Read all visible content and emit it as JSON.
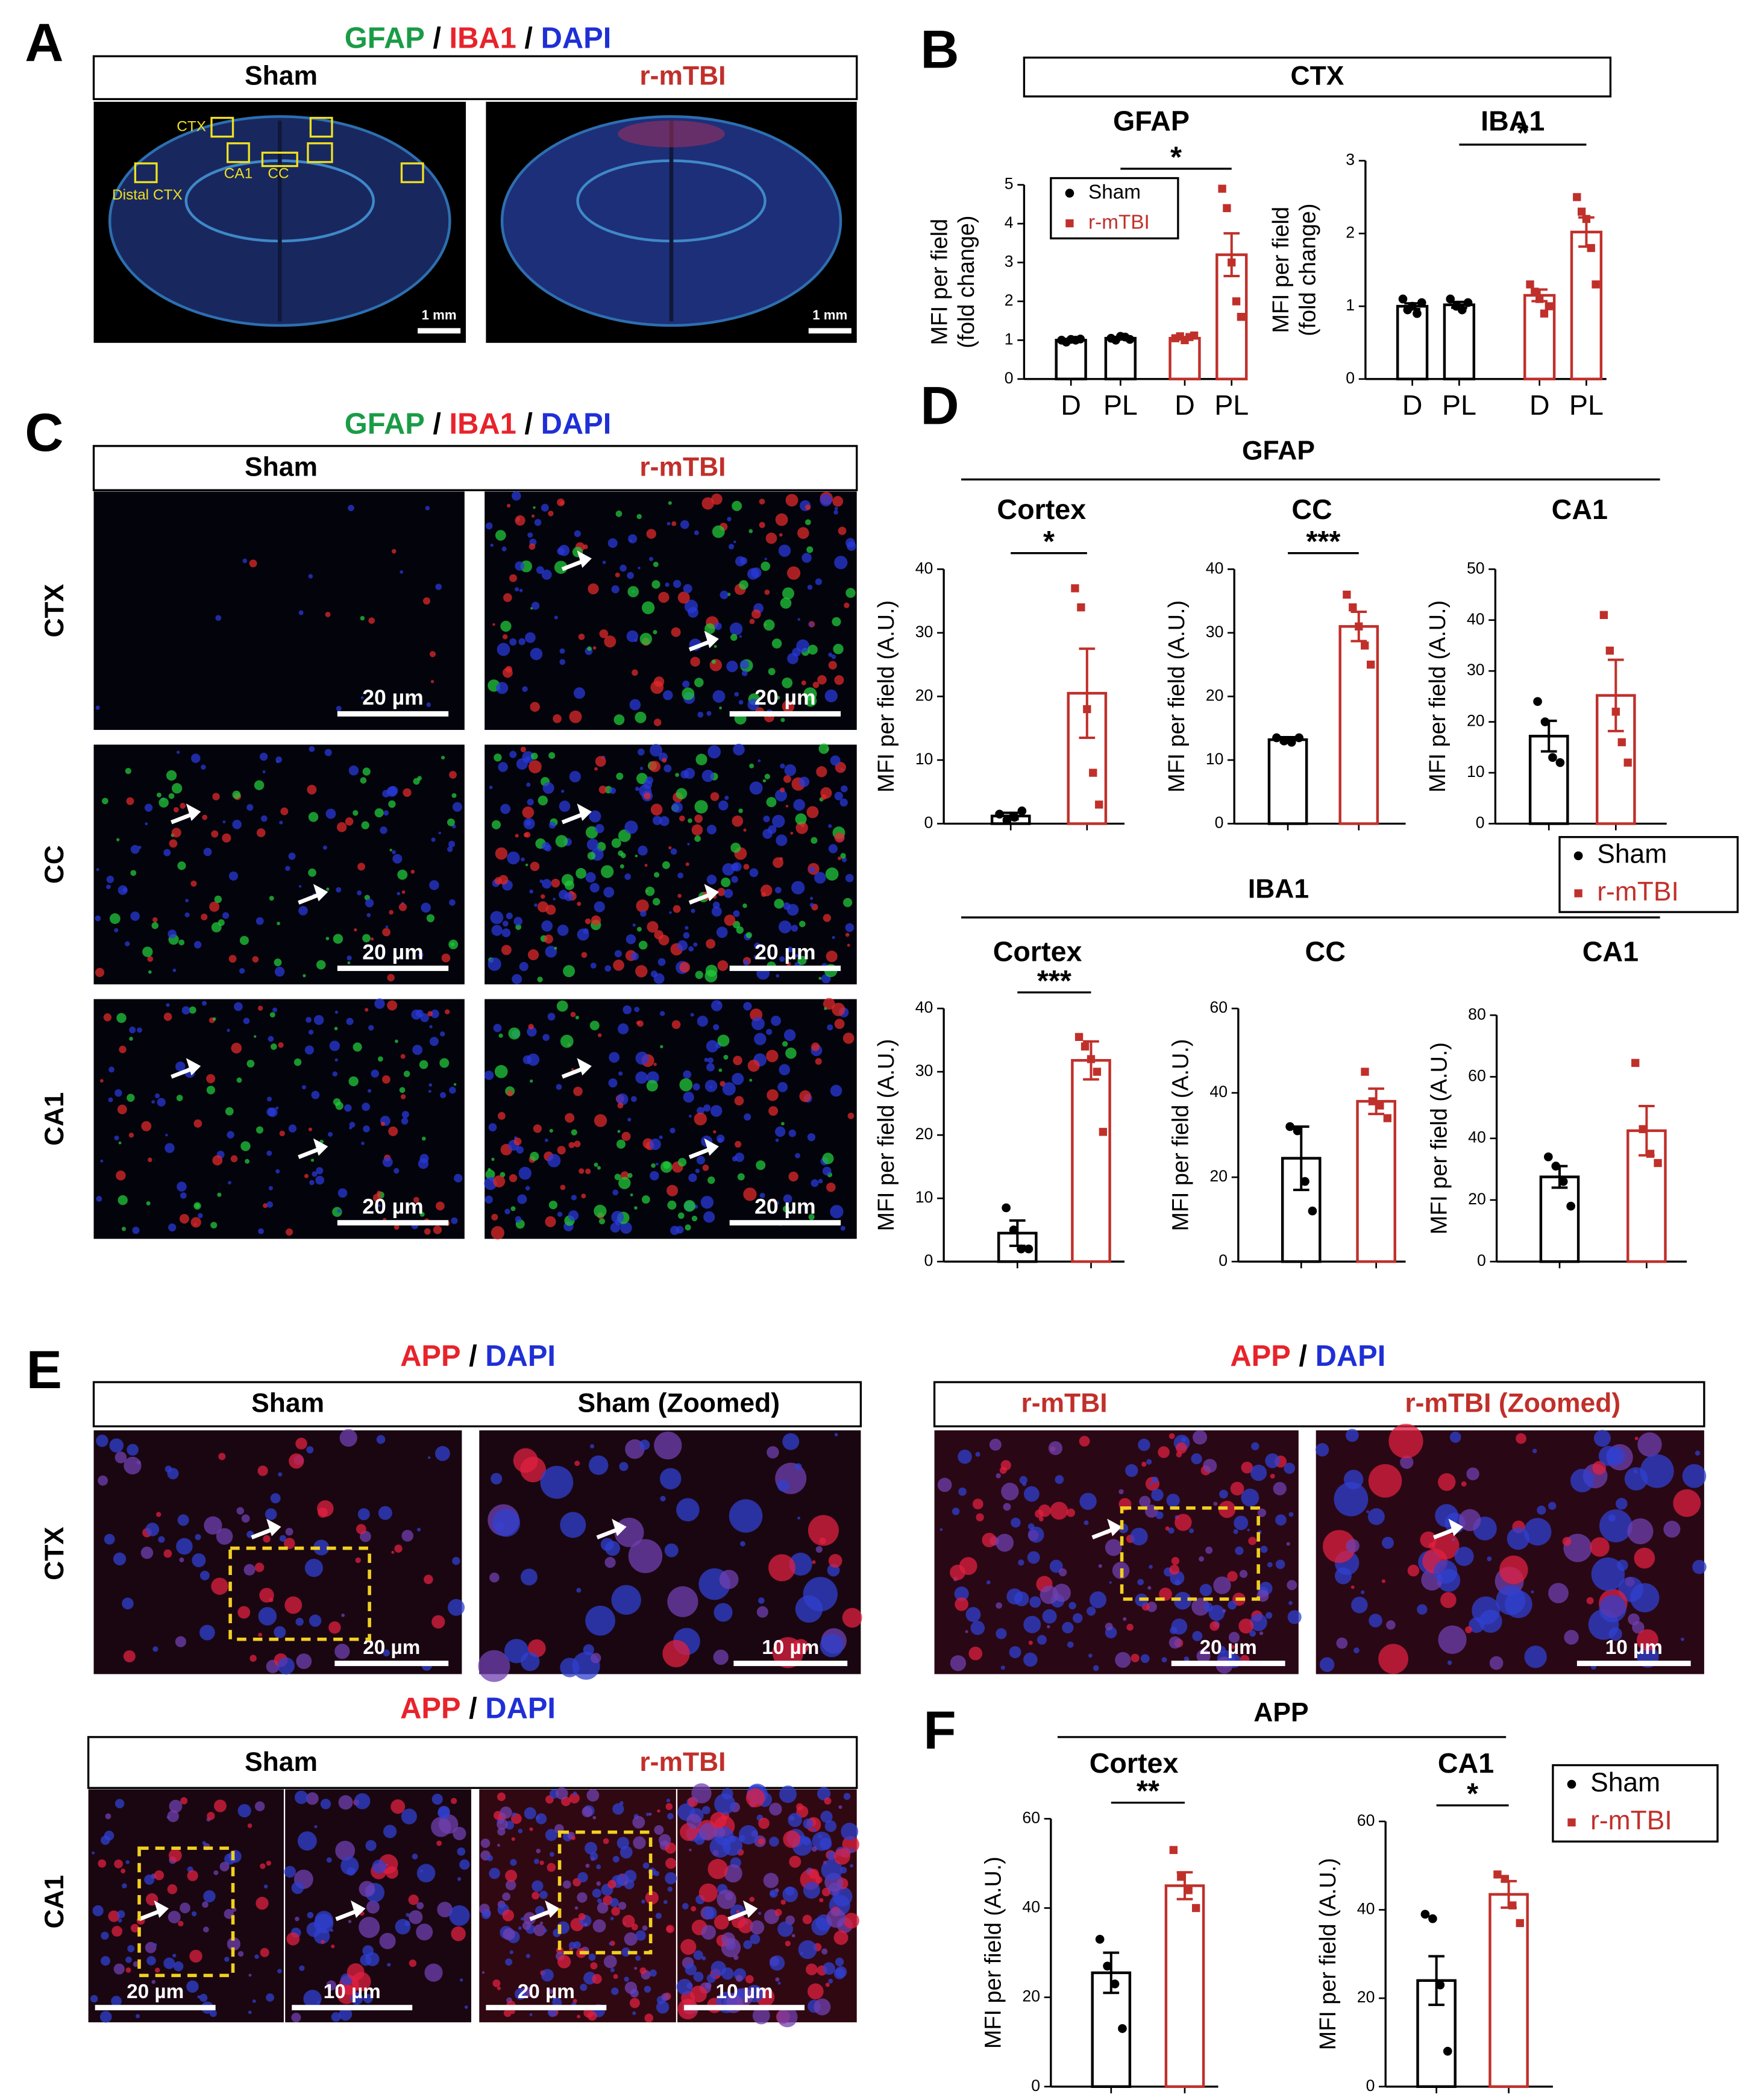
{
  "panel_labels": [
    "A",
    "B",
    "C",
    "D",
    "E",
    "F"
  ],
  "a": {
    "title": [
      {
        "text": "GFAP",
        "color": "#1a9c46"
      },
      {
        "text": " / ",
        "color": "#000000"
      },
      {
        "text": "IBA1",
        "color": "#e8232b"
      },
      {
        "text": " / ",
        "color": "#000000"
      },
      {
        "text": "DAPI",
        "color": "#1f2fd6"
      }
    ],
    "headers": [
      "Sham",
      "r-mTBI"
    ],
    "regions": [
      "CTX",
      "CA1",
      "CC",
      "Distal CTX"
    ],
    "scale_bars": [
      "1 mm",
      "1 mm"
    ]
  },
  "b": {
    "heading": "CTX"
  },
  "c": {
    "title": [
      {
        "text": "GFAP",
        "color": "#1a9c46"
      },
      {
        "text": " / ",
        "color": "#000000"
      },
      {
        "text": "IBA1",
        "color": "#e8232b"
      },
      {
        "text": " / ",
        "color": "#000000"
      },
      {
        "text": "DAPI",
        "color": "#1f2fd6"
      }
    ],
    "headers": [
      "Sham",
      "r-mTBI"
    ],
    "rows": [
      "CTX",
      "CC",
      "CA1"
    ],
    "scale_bars": [
      "20 µm",
      "20 µm",
      "20 µm",
      "20 µm",
      "20 µm",
      "20 µm"
    ]
  },
  "d": {
    "headings": [
      "GFAP",
      "IBA1"
    ]
  },
  "e": {
    "titles": [
      [
        {
          "text": "APP",
          "color": "#e8232b"
        },
        {
          "text": " / ",
          "color": "#000000"
        },
        {
          "text": "DAPI",
          "color": "#1f2fd6"
        }
      ],
      [
        {
          "text": "APP",
          "color": "#e8232b"
        },
        {
          "text": " / ",
          "color": "#000000"
        },
        {
          "text": "DAPI",
          "color": "#1f2fd6"
        }
      ],
      [
        {
          "text": "APP",
          "color": "#e8232b"
        },
        {
          "text": " / ",
          "color": "#000000"
        },
        {
          "text": "DAPI",
          "color": "#1f2fd6"
        }
      ]
    ],
    "headers_ctx": [
      "Sham",
      "Sham (Zoomed)",
      "r-mTBI",
      "r-mTBI (Zoomed)"
    ],
    "headers_ca1": [
      "Sham",
      "r-mTBI"
    ],
    "rows": [
      "CTX",
      "CA1"
    ],
    "scale_bars_ctx": [
      "20 µm",
      "10 µm",
      "20 µm",
      "10 µm"
    ],
    "scale_bars_ca1": [
      "20 µm",
      "10 µm",
      "20 µm",
      "10 µm"
    ]
  },
  "f": {
    "heading": "APP"
  },
  "chart_data": [
    {
      "type": "bar",
      "title": "GFAP",
      "ylabel": [
        "MFI per field",
        "(fold change)"
      ],
      "categories": [
        "D",
        "PL",
        "D",
        "PL"
      ],
      "series": [
        {
          "name": "Sham",
          "color": "#000000",
          "marker": "circle",
          "values": [
            1.0,
            1.05,
            null,
            null
          ],
          "errors": [
            0.03,
            0.03,
            null,
            null
          ],
          "points": [
            [
              1.0,
              0.95,
              1.02,
              1.0,
              1.03
            ],
            [
              1.05,
              1.0,
              1.1,
              1.08,
              1.02
            ],
            null,
            null
          ]
        },
        {
          "name": "r-mTBI",
          "color": "#c0302b",
          "marker": "square",
          "values": [
            null,
            null,
            1.05,
            3.2
          ],
          "errors": [
            null,
            null,
            0.03,
            0.55
          ],
          "points": [
            null,
            null,
            [
              1.05,
              1.1,
              1.0,
              1.08,
              1.12
            ],
            [
              4.9,
              4.4,
              3.0,
              2.0,
              1.6
            ]
          ]
        }
      ],
      "ylim": [
        0,
        5
      ],
      "yticks": [
        0,
        1,
        2,
        3,
        4,
        5
      ],
      "significance": "*",
      "legend": true
    },
    {
      "type": "bar",
      "title": "IBA1",
      "ylabel": [
        "MFI per field",
        "(fold change)"
      ],
      "categories": [
        "D",
        "PL",
        "D",
        "PL"
      ],
      "series": [
        {
          "name": "Sham",
          "color": "#000000",
          "marker": "circle",
          "values": [
            1.0,
            1.02,
            null,
            null
          ],
          "errors": [
            0.04,
            0.04,
            null,
            null
          ],
          "points": [
            [
              1.1,
              0.95,
              1.0,
              0.9,
              1.05
            ],
            [
              1.1,
              1.0,
              0.95,
              1.05
            ],
            null,
            null
          ]
        },
        {
          "name": "r-mTBI",
          "color": "#c0302b",
          "marker": "square",
          "values": [
            null,
            null,
            1.15,
            2.02
          ],
          "errors": [
            null,
            null,
            0.08,
            0.2
          ],
          "points": [
            null,
            null,
            [
              1.3,
              1.2,
              1.1,
              0.9,
              1.0
            ],
            [
              2.5,
              2.3,
              2.2,
              1.8,
              1.3
            ]
          ]
        }
      ],
      "ylim": [
        0,
        3
      ],
      "yticks": [
        0,
        1,
        2,
        3
      ],
      "significance": "*",
      "legend": false
    },
    {
      "type": "bar",
      "title": "Cortex",
      "ylabel": [
        "MFI per field (A.U.)"
      ],
      "categories": [
        null,
        null
      ],
      "series": [
        {
          "name": "Sham",
          "color": "#000000",
          "marker": "circle",
          "values": [
            1.2,
            null
          ],
          "errors": [
            0.5,
            null
          ],
          "points": [
            [
              1.5,
              0.5,
              1.0,
              2.0
            ],
            null
          ]
        },
        {
          "name": "r-mTBI",
          "color": "#c0302b",
          "marker": "square",
          "values": [
            null,
            20.5
          ],
          "errors": [
            null,
            7
          ],
          "points": [
            null,
            [
              37,
              34,
              18,
              8,
              3
            ]
          ]
        }
      ],
      "ylim": [
        0,
        40
      ],
      "yticks": [
        0,
        10,
        20,
        30,
        40
      ],
      "significance": "*",
      "legend": false
    },
    {
      "type": "bar",
      "title": "CC",
      "ylabel": [
        "MFI per field (A.U.)"
      ],
      "categories": [
        null,
        null
      ],
      "series": [
        {
          "name": "Sham",
          "color": "#000000",
          "marker": "circle",
          "values": [
            13.2,
            null
          ],
          "errors": [
            0.4,
            null
          ],
          "points": [
            [
              13.5,
              13,
              12.8,
              13.5
            ],
            null
          ]
        },
        {
          "name": "r-mTBI",
          "color": "#c0302b",
          "marker": "square",
          "values": [
            null,
            31
          ],
          "errors": [
            null,
            2.3
          ],
          "points": [
            null,
            [
              36,
              34,
              31,
              28,
              25
            ]
          ]
        }
      ],
      "ylim": [
        0,
        40
      ],
      "yticks": [
        0,
        10,
        20,
        30,
        40
      ],
      "significance": "***",
      "legend": false
    },
    {
      "type": "bar",
      "title": "CA1",
      "ylabel": [
        "MFI per field (A.U.)"
      ],
      "categories": [
        null,
        null
      ],
      "series": [
        {
          "name": "Sham",
          "color": "#000000",
          "marker": "circle",
          "values": [
            17.2,
            null
          ],
          "errors": [
            3,
            null
          ],
          "points": [
            [
              24,
              20,
              13,
              12
            ],
            null
          ]
        },
        {
          "name": "r-mTBI",
          "color": "#c0302b",
          "marker": "square",
          "values": [
            null,
            25.2
          ],
          "errors": [
            null,
            7
          ],
          "points": [
            null,
            [
              41,
              34,
              22,
              16,
              12
            ]
          ]
        }
      ],
      "ylim": [
        0,
        50
      ],
      "yticks": [
        0,
        10,
        20,
        30,
        40,
        50
      ],
      "legend": true
    },
    {
      "type": "bar",
      "title": "Cortex",
      "ylabel": [
        "MFI per field (A.U.)"
      ],
      "categories": [
        null,
        null
      ],
      "series": [
        {
          "name": "Sham",
          "color": "#000000",
          "marker": "circle",
          "values": [
            4.5,
            null
          ],
          "errors": [
            2,
            null
          ],
          "points": [
            [
              8.5,
              5,
              2,
              2
            ],
            null
          ]
        },
        {
          "name": "r-mTBI",
          "color": "#c0302b",
          "marker": "square",
          "values": [
            null,
            31.8
          ],
          "errors": [
            null,
            3
          ],
          "points": [
            null,
            [
              35.5,
              34,
              32,
              30,
              20.5
            ]
          ]
        }
      ],
      "ylim": [
        0,
        40
      ],
      "yticks": [
        0,
        10,
        20,
        30,
        40
      ],
      "significance": "***",
      "legend": false
    },
    {
      "type": "bar",
      "title": "CC",
      "ylabel": [
        "MFI per field (A.U.)"
      ],
      "categories": [
        null,
        null
      ],
      "series": [
        {
          "name": "Sham",
          "color": "#000000",
          "marker": "circle",
          "values": [
            24.5,
            null
          ],
          "errors": [
            7.5,
            null
          ],
          "points": [
            [
              32,
              31,
              19,
              12
            ],
            null
          ]
        },
        {
          "name": "r-mTBI",
          "color": "#c0302b",
          "marker": "square",
          "values": [
            null,
            38
          ],
          "errors": [
            null,
            3
          ],
          "points": [
            null,
            [
              45,
              38,
              37,
              34
            ]
          ]
        }
      ],
      "ylim": [
        0,
        60
      ],
      "yticks": [
        0,
        20,
        40,
        60
      ],
      "legend": false
    },
    {
      "type": "bar",
      "title": "CA1",
      "ylabel": [
        "MFI per field (A.U.)"
      ],
      "categories": [
        null,
        null
      ],
      "series": [
        {
          "name": "Sham",
          "color": "#000000",
          "marker": "circle",
          "values": [
            27.5,
            null
          ],
          "errors": [
            3.5,
            null
          ],
          "points": [
            [
              34,
              31,
              26,
              18
            ],
            null
          ]
        },
        {
          "name": "r-mTBI",
          "color": "#c0302b",
          "marker": "square",
          "values": [
            null,
            42.5
          ],
          "errors": [
            null,
            8
          ],
          "points": [
            null,
            [
              64.5,
              43,
              35,
              32
            ]
          ]
        }
      ],
      "ylim": [
        0,
        80
      ],
      "yticks": [
        0,
        20,
        40,
        60,
        80
      ],
      "legend": false
    },
    {
      "type": "bar",
      "title": "Cortex",
      "ylabel": [
        "MFI per field (A.U.)"
      ],
      "categories": [
        null,
        null
      ],
      "series": [
        {
          "name": "Sham",
          "color": "#000000",
          "marker": "circle",
          "values": [
            25.5,
            null
          ],
          "errors": [
            4.5,
            null
          ],
          "points": [
            [
              33,
              27,
              23,
              13
            ],
            null
          ]
        },
        {
          "name": "r-mTBI",
          "color": "#c0302b",
          "marker": "square",
          "values": [
            null,
            45
          ],
          "errors": [
            null,
            3
          ],
          "points": [
            null,
            [
              53,
              47,
              44,
              40
            ]
          ]
        }
      ],
      "ylim": [
        0,
        60
      ],
      "yticks": [
        0,
        20,
        40,
        60
      ],
      "significance": "**",
      "legend": false
    },
    {
      "type": "bar",
      "title": "CA1",
      "ylabel": [
        "MFI per field (A.U.)"
      ],
      "categories": [
        null,
        null
      ],
      "series": [
        {
          "name": "Sham",
          "color": "#000000",
          "marker": "circle",
          "values": [
            24,
            null
          ],
          "errors": [
            5.5,
            null
          ],
          "points": [
            [
              39,
              38,
              23,
              8
            ],
            null
          ]
        },
        {
          "name": "r-mTBI",
          "color": "#c0302b",
          "marker": "square",
          "values": [
            null,
            43.5
          ],
          "errors": [
            null,
            3
          ],
          "points": [
            null,
            [
              48,
              47,
              41,
              37
            ]
          ]
        }
      ],
      "ylim": [
        0,
        60
      ],
      "yticks": [
        0,
        20,
        40,
        60
      ],
      "significance": "*",
      "legend": true
    }
  ]
}
